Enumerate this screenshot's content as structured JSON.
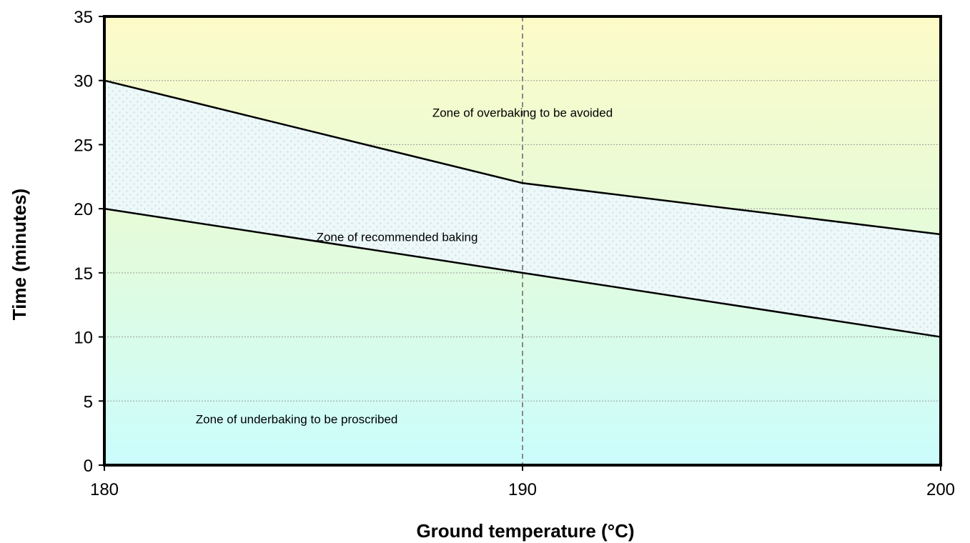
{
  "chart_data": {
    "type": "area",
    "title": "",
    "xlabel": "Ground temperature (°C)",
    "ylabel": "Time (minutes)",
    "xlim": [
      180,
      200
    ],
    "ylim": [
      0,
      35
    ],
    "x_ticks": [
      180,
      190,
      200
    ],
    "y_ticks": [
      0,
      5,
      10,
      15,
      20,
      25,
      30,
      35
    ],
    "x_tick_labels": [
      "180",
      "190",
      "200"
    ],
    "y_tick_labels": [
      "0",
      "5",
      "10",
      "15",
      "20",
      "25",
      "30",
      "35"
    ],
    "grid": "horizontal dotted",
    "reference_line": {
      "x": 190,
      "style": "dashed"
    },
    "series": [
      {
        "x": [
          180,
          190,
          200
        ],
        "values": [
          30,
          22,
          18
        ]
      },
      {
        "x": [
          180,
          190,
          200
        ],
        "values": [
          20,
          15,
          10
        ]
      }
    ],
    "annotations": [
      {
        "text": "Zone of overbaking to be avoided",
        "x": 190,
        "y": 27.5
      },
      {
        "text": "Zone of recommended baking",
        "x": 187,
        "y": 17.8
      },
      {
        "text": "Zone of underbaking to be proscribed",
        "x": 184.6,
        "y": 3.6
      }
    ],
    "colors": {
      "background_top": "#fdfbc8",
      "background_bottom": "#cbfdfd",
      "band_fill": "#eef8f8",
      "band_pattern": "#bfe0ea",
      "line": "#000000",
      "grid": "#999999",
      "reference": "#888888"
    }
  }
}
